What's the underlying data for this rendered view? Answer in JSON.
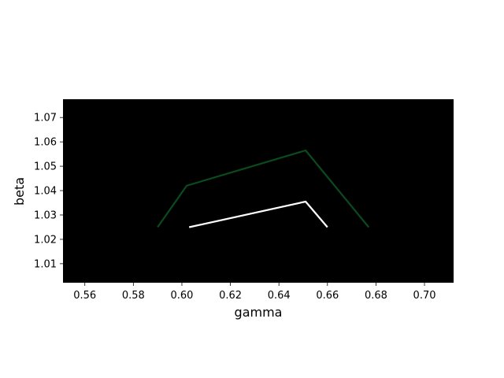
{
  "chart_data": {
    "type": "line",
    "title": "",
    "xlabel": "gamma",
    "ylabel": "beta",
    "xlim": [
      0.551,
      0.712
    ],
    "ylim": [
      1.0022,
      1.0775
    ],
    "xticks": [
      0.56,
      0.58,
      0.6,
      0.62,
      0.64,
      0.66,
      0.68,
      0.7
    ],
    "xtick_labels": [
      "0.56",
      "0.58",
      "0.60",
      "0.62",
      "0.64",
      "0.66",
      "0.68",
      "0.70"
    ],
    "yticks": [
      1.01,
      1.02,
      1.03,
      1.04,
      1.05,
      1.06,
      1.07
    ],
    "ytick_labels": [
      "1.01",
      "1.02",
      "1.03",
      "1.04",
      "1.05",
      "1.06",
      "1.07"
    ],
    "plot_background": "#000000",
    "grid": false,
    "series": [
      {
        "color": "#0a4a1e",
        "points": [
          [
            0.59,
            1.025
          ],
          [
            0.602,
            1.042
          ],
          [
            0.651,
            1.0565
          ],
          [
            0.677,
            1.025
          ]
        ]
      },
      {
        "color": "#ffffff",
        "points": [
          [
            0.603,
            1.025
          ],
          [
            0.651,
            1.0355
          ],
          [
            0.66,
            1.025
          ]
        ]
      }
    ]
  }
}
